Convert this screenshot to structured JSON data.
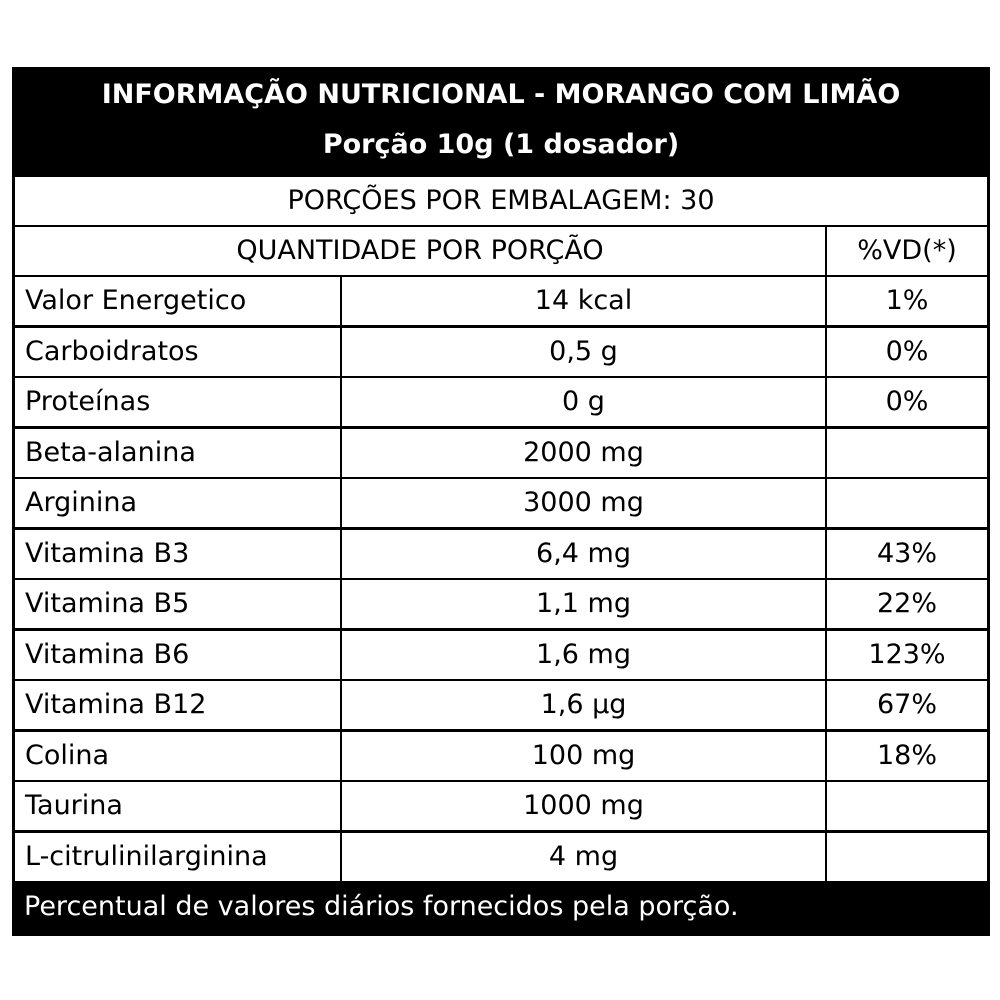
{
  "header": {
    "title": "INFORMAÇÃO NUTRICIONAL - MORANGO COM LIMÃO",
    "portion": "Porção 10g (1 dosador)"
  },
  "servings_per_package": "PORÇÕES POR EMBALAGEM: 30",
  "columns": {
    "quantity": "QUANTIDADE POR PORÇÃO",
    "dv": "%VD(*)"
  },
  "rows": [
    {
      "name": "Valor Energetico",
      "amount": "14 kcal",
      "dv": "1%"
    },
    {
      "name": "Carboidratos",
      "amount": "0,5 g",
      "dv": "0%"
    },
    {
      "name": "Proteínas",
      "amount": "0 g",
      "dv": "0%"
    },
    {
      "name": "Beta-alanina",
      "amount": "2000 mg",
      "dv": ""
    },
    {
      "name": "Arginina",
      "amount": "3000 mg",
      "dv": ""
    },
    {
      "name": "Vitamina B3",
      "amount": "6,4 mg",
      "dv": "43%"
    },
    {
      "name": "Vitamina B5",
      "amount": "1,1 mg",
      "dv": "22%"
    },
    {
      "name": "Vitamina B6",
      "amount": "1,6 mg",
      "dv": "123%"
    },
    {
      "name": "Vitamina B12",
      "amount": "1,6 µg",
      "dv": "67%"
    },
    {
      "name": "Colina",
      "amount": "100 mg",
      "dv": "18%"
    },
    {
      "name": "Taurina",
      "amount": "1000 mg",
      "dv": ""
    },
    {
      "name": "L-citrulinilarginina",
      "amount": "4 mg",
      "dv": ""
    }
  ],
  "footer": "Percentual de valores diários fornecidos pela porção."
}
